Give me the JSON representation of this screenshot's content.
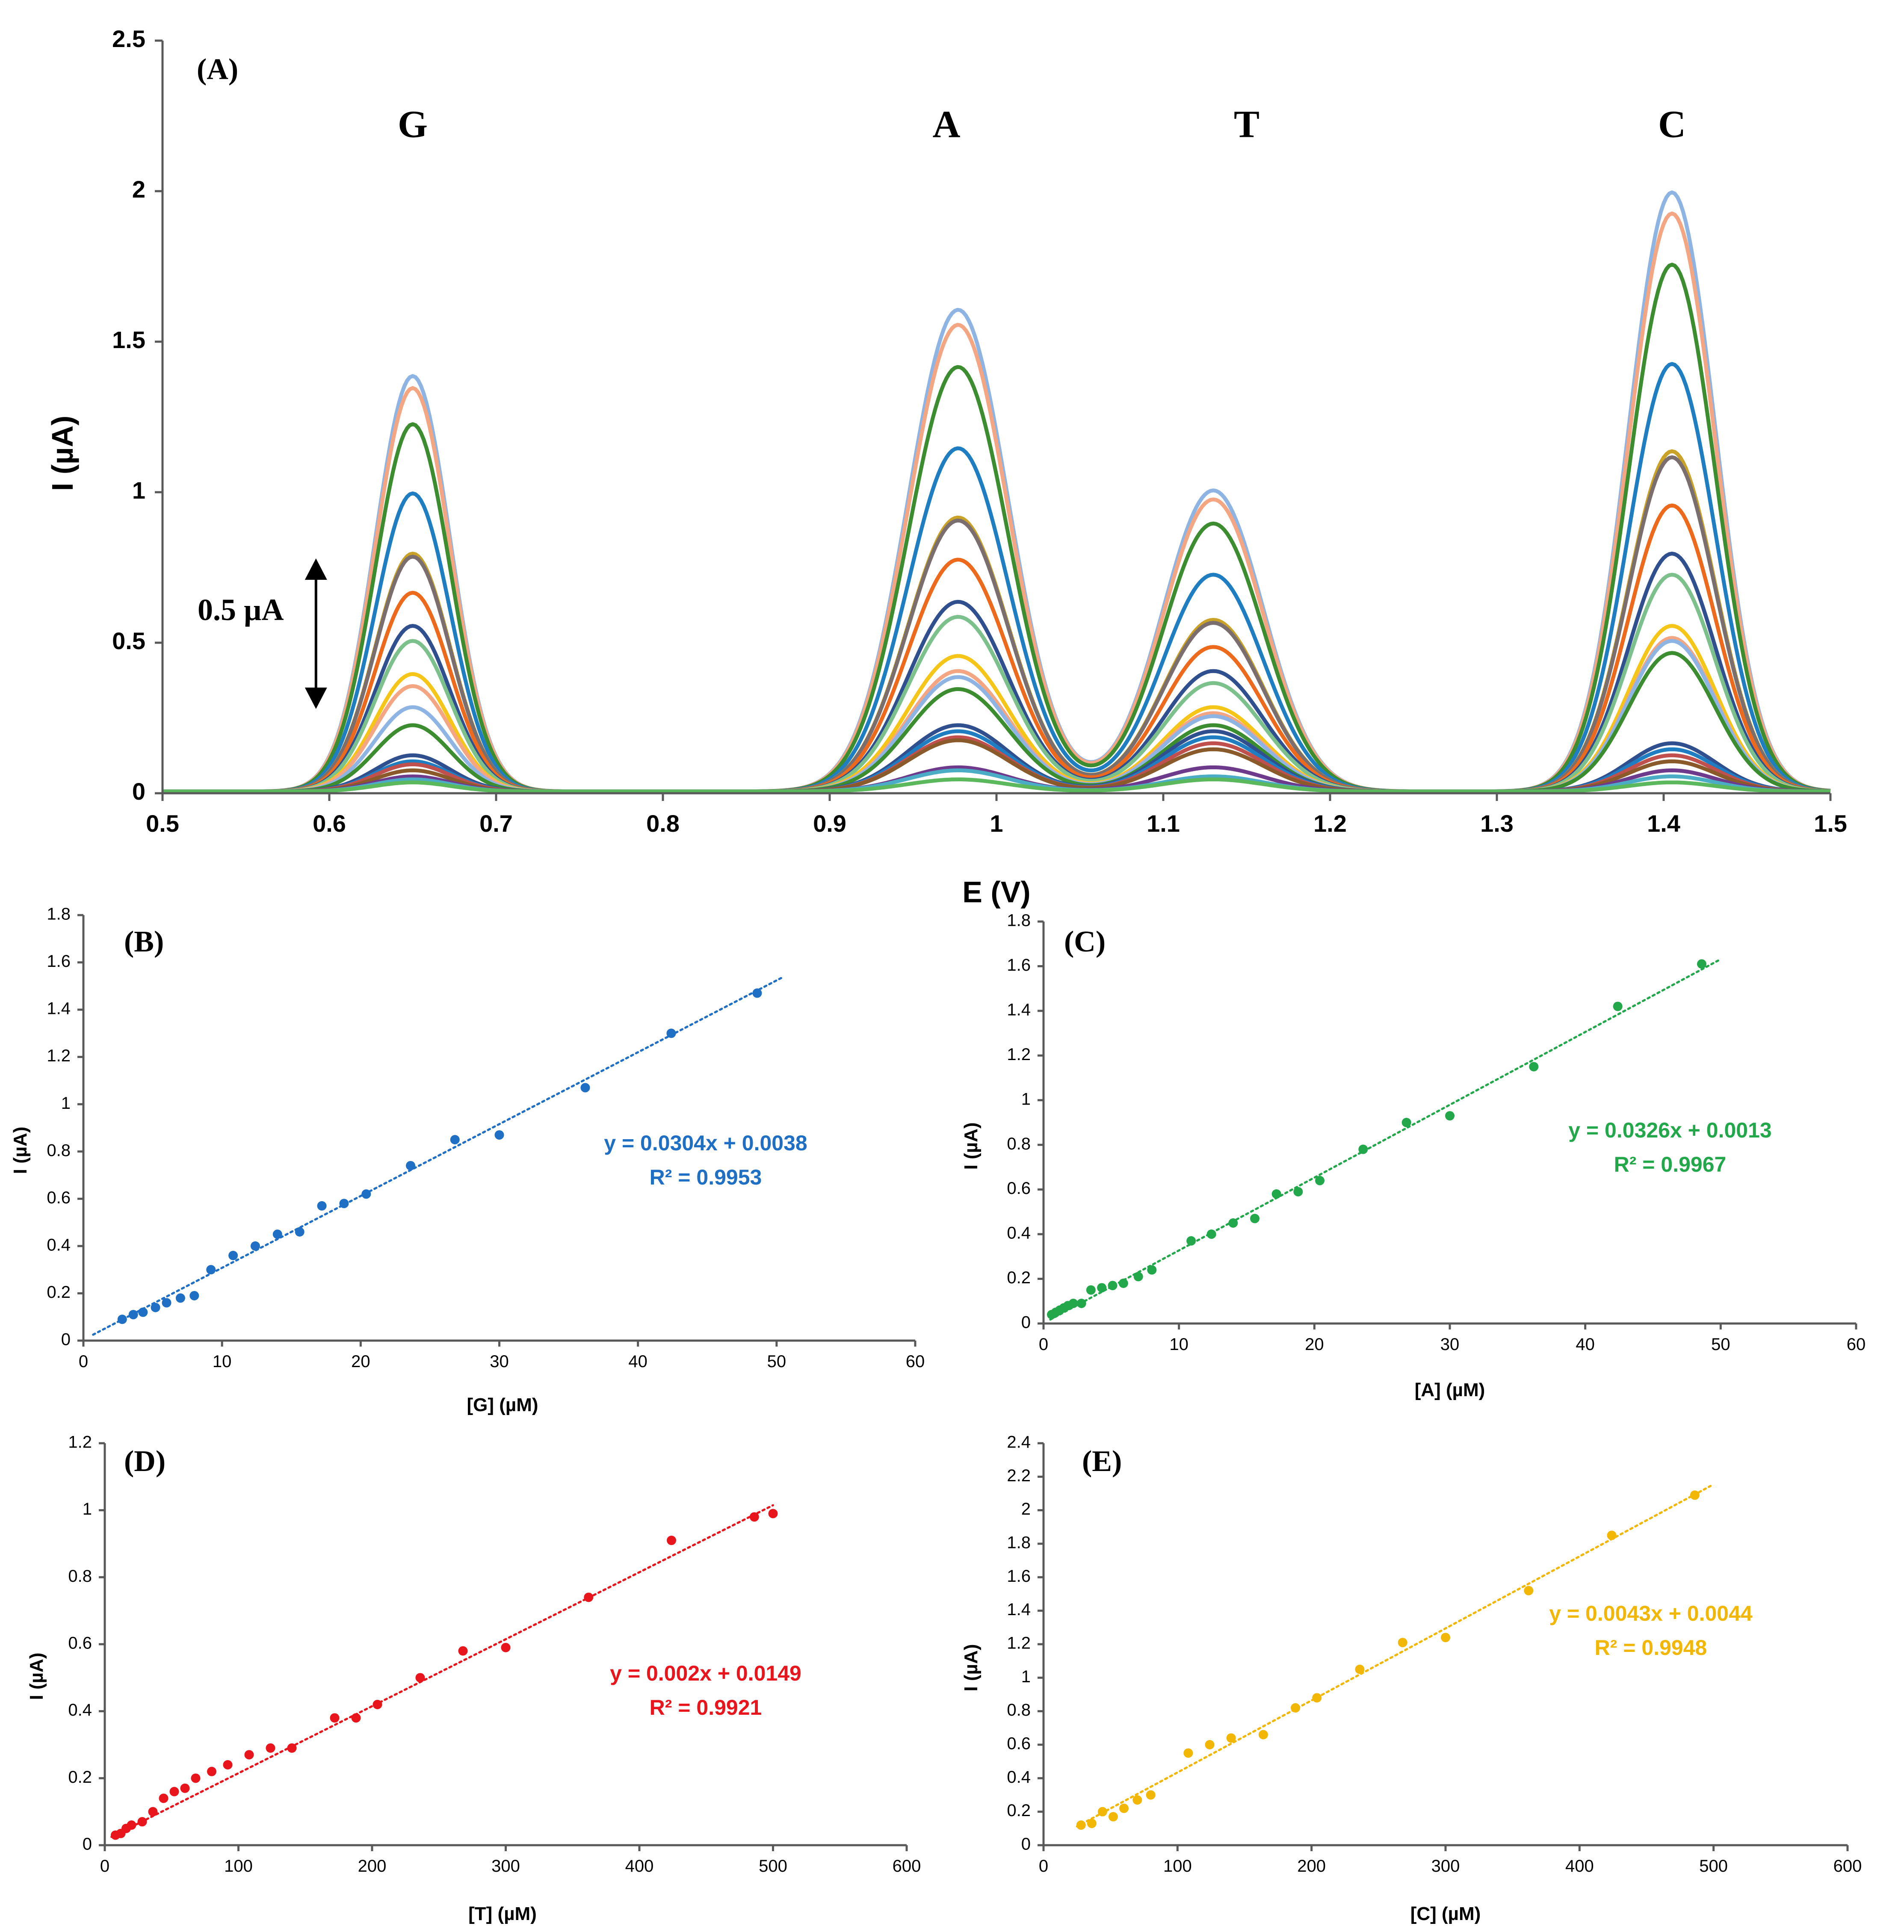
{
  "chart_data": [
    {
      "id": "A",
      "type": "line",
      "panel_label": "(A)",
      "xlabel": "E (V)",
      "ylabel": "I (µA)",
      "xlim": [
        0.5,
        1.5
      ],
      "ylim": [
        0,
        2.5
      ],
      "xticks": [
        "0.5",
        "0.6",
        "0.7",
        "0.8",
        "0.9",
        "1",
        "1.1",
        "1.2",
        "1.3",
        "1.4",
        "1.5"
      ],
      "yticks": [
        "0",
        "0.5",
        "1",
        "1.5",
        "2",
        "2.5"
      ],
      "peak_labels": [
        {
          "text": "G",
          "x": 0.65,
          "y": 2.18
        },
        {
          "text": "A",
          "x": 0.97,
          "y": 2.18
        },
        {
          "text": "T",
          "x": 1.15,
          "y": 2.18
        },
        {
          "text": "C",
          "x": 1.405,
          "y": 2.18
        }
      ],
      "scale_bar": {
        "label": "0.5 µA",
        "from": 0.28,
        "to": 0.78,
        "x": 0.592
      },
      "peak_centers": {
        "G": 0.65,
        "A": 0.977,
        "T": 1.13,
        "C": 1.405
      },
      "series": [
        {
          "name": "curve 1",
          "color": "#8EB4E3",
          "G": 1.38,
          "A": 1.6,
          "T": 1.0,
          "C": 1.99
        },
        {
          "name": "curve 2",
          "color": "#F4A582",
          "G": 1.34,
          "A": 1.55,
          "T": 0.97,
          "C": 1.92
        },
        {
          "name": "curve 3",
          "color": "#3C8D2F",
          "G": 1.22,
          "A": 1.41,
          "T": 0.89,
          "C": 1.75
        },
        {
          "name": "curve 4",
          "color": "#1F7EC2",
          "G": 0.99,
          "A": 1.14,
          "T": 0.72,
          "C": 1.42
        },
        {
          "name": "curve 5",
          "color": "#C9A227",
          "G": 0.79,
          "A": 0.91,
          "T": 0.57,
          "C": 1.13
        },
        {
          "name": "curve 6",
          "color": "#7A6E6E",
          "G": 0.78,
          "A": 0.9,
          "T": 0.56,
          "C": 1.11
        },
        {
          "name": "curve 7",
          "color": "#ED6A1C",
          "G": 0.66,
          "A": 0.77,
          "T": 0.48,
          "C": 0.95
        },
        {
          "name": "curve 8",
          "color": "#2F4F8F",
          "G": 0.55,
          "A": 0.63,
          "T": 0.4,
          "C": 0.79
        },
        {
          "name": "curve 9",
          "color": "#7CC08C",
          "G": 0.5,
          "A": 0.58,
          "T": 0.36,
          "C": 0.72
        },
        {
          "name": "curve 10",
          "color": "#F5C518",
          "G": 0.39,
          "A": 0.45,
          "T": 0.28,
          "C": 0.55
        },
        {
          "name": "curve 11",
          "color": "#F4A582",
          "G": 0.35,
          "A": 0.4,
          "T": 0.26,
          "C": 0.51
        },
        {
          "name": "curve 12",
          "color": "#8EB4E3",
          "G": 0.28,
          "A": 0.38,
          "T": 0.25,
          "C": 0.5
        },
        {
          "name": "curve 13",
          "color": "#3C8D2F",
          "G": 0.22,
          "A": 0.34,
          "T": 0.22,
          "C": 0.46
        },
        {
          "name": "curve 14",
          "color": "#2F4F8F",
          "G": 0.12,
          "A": 0.22,
          "T": 0.2,
          "C": 0.16
        },
        {
          "name": "curve 15",
          "color": "#1F7EC2",
          "G": 0.1,
          "A": 0.2,
          "T": 0.18,
          "C": 0.14
        },
        {
          "name": "curve 16",
          "color": "#C0504D",
          "G": 0.09,
          "A": 0.18,
          "T": 0.16,
          "C": 0.12
        },
        {
          "name": "curve 17",
          "color": "#8B5A2B",
          "G": 0.07,
          "A": 0.17,
          "T": 0.14,
          "C": 0.1
        },
        {
          "name": "curve 18",
          "color": "#6E3B8C",
          "G": 0.05,
          "A": 0.08,
          "T": 0.08,
          "C": 0.07
        },
        {
          "name": "curve 19",
          "color": "#4BACC6",
          "G": 0.04,
          "A": 0.07,
          "T": 0.05,
          "C": 0.05
        },
        {
          "name": "curve 20",
          "color": "#5CB85C",
          "G": 0.03,
          "A": 0.04,
          "T": 0.04,
          "C": 0.03
        }
      ]
    },
    {
      "id": "B",
      "type": "scatter",
      "panel_label": "(B)",
      "xlabel": "[G] (µM)",
      "ylabel": "I (µA)",
      "xlim": [
        0,
        60
      ],
      "ylim": [
        0,
        1.8
      ],
      "xticks": [
        "0",
        "10",
        "20",
        "30",
        "40",
        "50",
        "60"
      ],
      "yticks": [
        "0",
        "0.2",
        "0.4",
        "0.6",
        "0.8",
        "1",
        "1.2",
        "1.4",
        "1.6",
        "1.8"
      ],
      "color": "#1F6FC5",
      "fit": {
        "slope": 0.0304,
        "intercept": 0.0038,
        "x_range": [
          0.7,
          50.5
        ]
      },
      "equation": "y = 0.0304x + 0.0038",
      "r2": "R² = 0.9953",
      "x": [
        2.8,
        3.6,
        4.3,
        5.2,
        6.0,
        7.0,
        8.0,
        9.2,
        10.8,
        12.4,
        14.0,
        15.6,
        17.2,
        18.8,
        20.4,
        23.6,
        26.8,
        30.0,
        36.2,
        42.4,
        48.6
      ],
      "y": [
        0.09,
        0.11,
        0.12,
        0.14,
        0.16,
        0.18,
        0.19,
        0.3,
        0.36,
        0.4,
        0.45,
        0.46,
        0.57,
        0.58,
        0.62,
        0.74,
        0.85,
        0.87,
        1.07,
        1.3,
        1.47
      ]
    },
    {
      "id": "C",
      "type": "scatter",
      "panel_label": "(C)",
      "xlabel": "[A] (µM)",
      "ylabel": "I (µA)",
      "xlim": [
        0,
        60
      ],
      "ylim": [
        0,
        1.8
      ],
      "xticks": [
        "0",
        "10",
        "20",
        "30",
        "40",
        "50",
        "60"
      ],
      "yticks": [
        "0",
        "0.2",
        "0.4",
        "0.6",
        "0.8",
        "1",
        "1.2",
        "1.4",
        "1.6",
        "1.8"
      ],
      "color": "#22A84B",
      "fit": {
        "slope": 0.0326,
        "intercept": 0.0013,
        "x_range": [
          0.5,
          50.0
        ]
      },
      "equation": "y = 0.0326x + 0.0013",
      "r2": "R² = 0.9967",
      "x": [
        0.6,
        0.9,
        1.2,
        1.5,
        1.8,
        2.2,
        2.8,
        3.5,
        4.3,
        5.1,
        5.9,
        7.0,
        8.0,
        10.9,
        12.4,
        14.0,
        15.6,
        17.2,
        18.8,
        20.4,
        23.6,
        26.8,
        30.0,
        36.2,
        42.4,
        48.6
      ],
      "y": [
        0.04,
        0.05,
        0.06,
        0.07,
        0.08,
        0.09,
        0.09,
        0.15,
        0.16,
        0.17,
        0.18,
        0.21,
        0.24,
        0.37,
        0.4,
        0.45,
        0.47,
        0.58,
        0.59,
        0.64,
        0.78,
        0.9,
        0.93,
        1.15,
        1.42,
        1.61
      ]
    },
    {
      "id": "D",
      "type": "scatter",
      "panel_label": "(D)",
      "xlabel": "[T] (µM)",
      "ylabel": "I (µA)",
      "xlim": [
        0,
        600
      ],
      "ylim": [
        0,
        1.2
      ],
      "xticks": [
        "0",
        "100",
        "200",
        "300",
        "400",
        "500",
        "600"
      ],
      "yticks": [
        "0",
        "0.2",
        "0.4",
        "0.6",
        "0.8",
        "1",
        "1.2"
      ],
      "color": "#E8161C",
      "fit": {
        "slope": 0.002,
        "intercept": 0.0149,
        "x_range": [
          5,
          500
        ]
      },
      "equation": "y = 0.002x + 0.0149",
      "r2": "R² = 0.9921",
      "x": [
        8,
        12,
        16,
        20,
        28,
        36,
        44,
        52,
        60,
        68,
        80,
        92,
        108,
        124,
        140,
        172,
        188,
        204,
        236,
        268,
        300,
        362,
        424,
        486,
        500
      ],
      "y": [
        0.03,
        0.035,
        0.05,
        0.06,
        0.07,
        0.1,
        0.14,
        0.16,
        0.17,
        0.2,
        0.22,
        0.24,
        0.27,
        0.29,
        0.29,
        0.38,
        0.38,
        0.42,
        0.5,
        0.58,
        0.59,
        0.74,
        0.91,
        0.98,
        0.99
      ]
    },
    {
      "id": "E",
      "type": "scatter",
      "panel_label": "(E)",
      "xlabel": "[C] (µM)",
      "ylabel": "I (µA)",
      "xlim": [
        0,
        600
      ],
      "ylim": [
        0,
        2.4
      ],
      "xticks": [
        "0",
        "100",
        "200",
        "300",
        "400",
        "500",
        "600"
      ],
      "yticks": [
        "0",
        "0.2",
        "0.4",
        "0.6",
        "0.8",
        "1",
        "1.2",
        "1.4",
        "1.6",
        "1.8",
        "2",
        "2.2",
        "2.4"
      ],
      "color": "#F2B705",
      "fit": {
        "slope": 0.0043,
        "intercept": 0.0044,
        "x_range": [
          25,
          500
        ]
      },
      "equation": "y = 0.0043x + 0.0044",
      "r2": "R² = 0.9948",
      "x": [
        28,
        36,
        44,
        52,
        60,
        70,
        80,
        108,
        124,
        140,
        164,
        188,
        204,
        236,
        268,
        300,
        362,
        424,
        486
      ],
      "y": [
        0.12,
        0.13,
        0.2,
        0.17,
        0.22,
        0.27,
        0.3,
        0.55,
        0.6,
        0.64,
        0.66,
        0.82,
        0.88,
        1.05,
        1.21,
        1.24,
        1.52,
        1.85,
        2.09
      ]
    }
  ]
}
